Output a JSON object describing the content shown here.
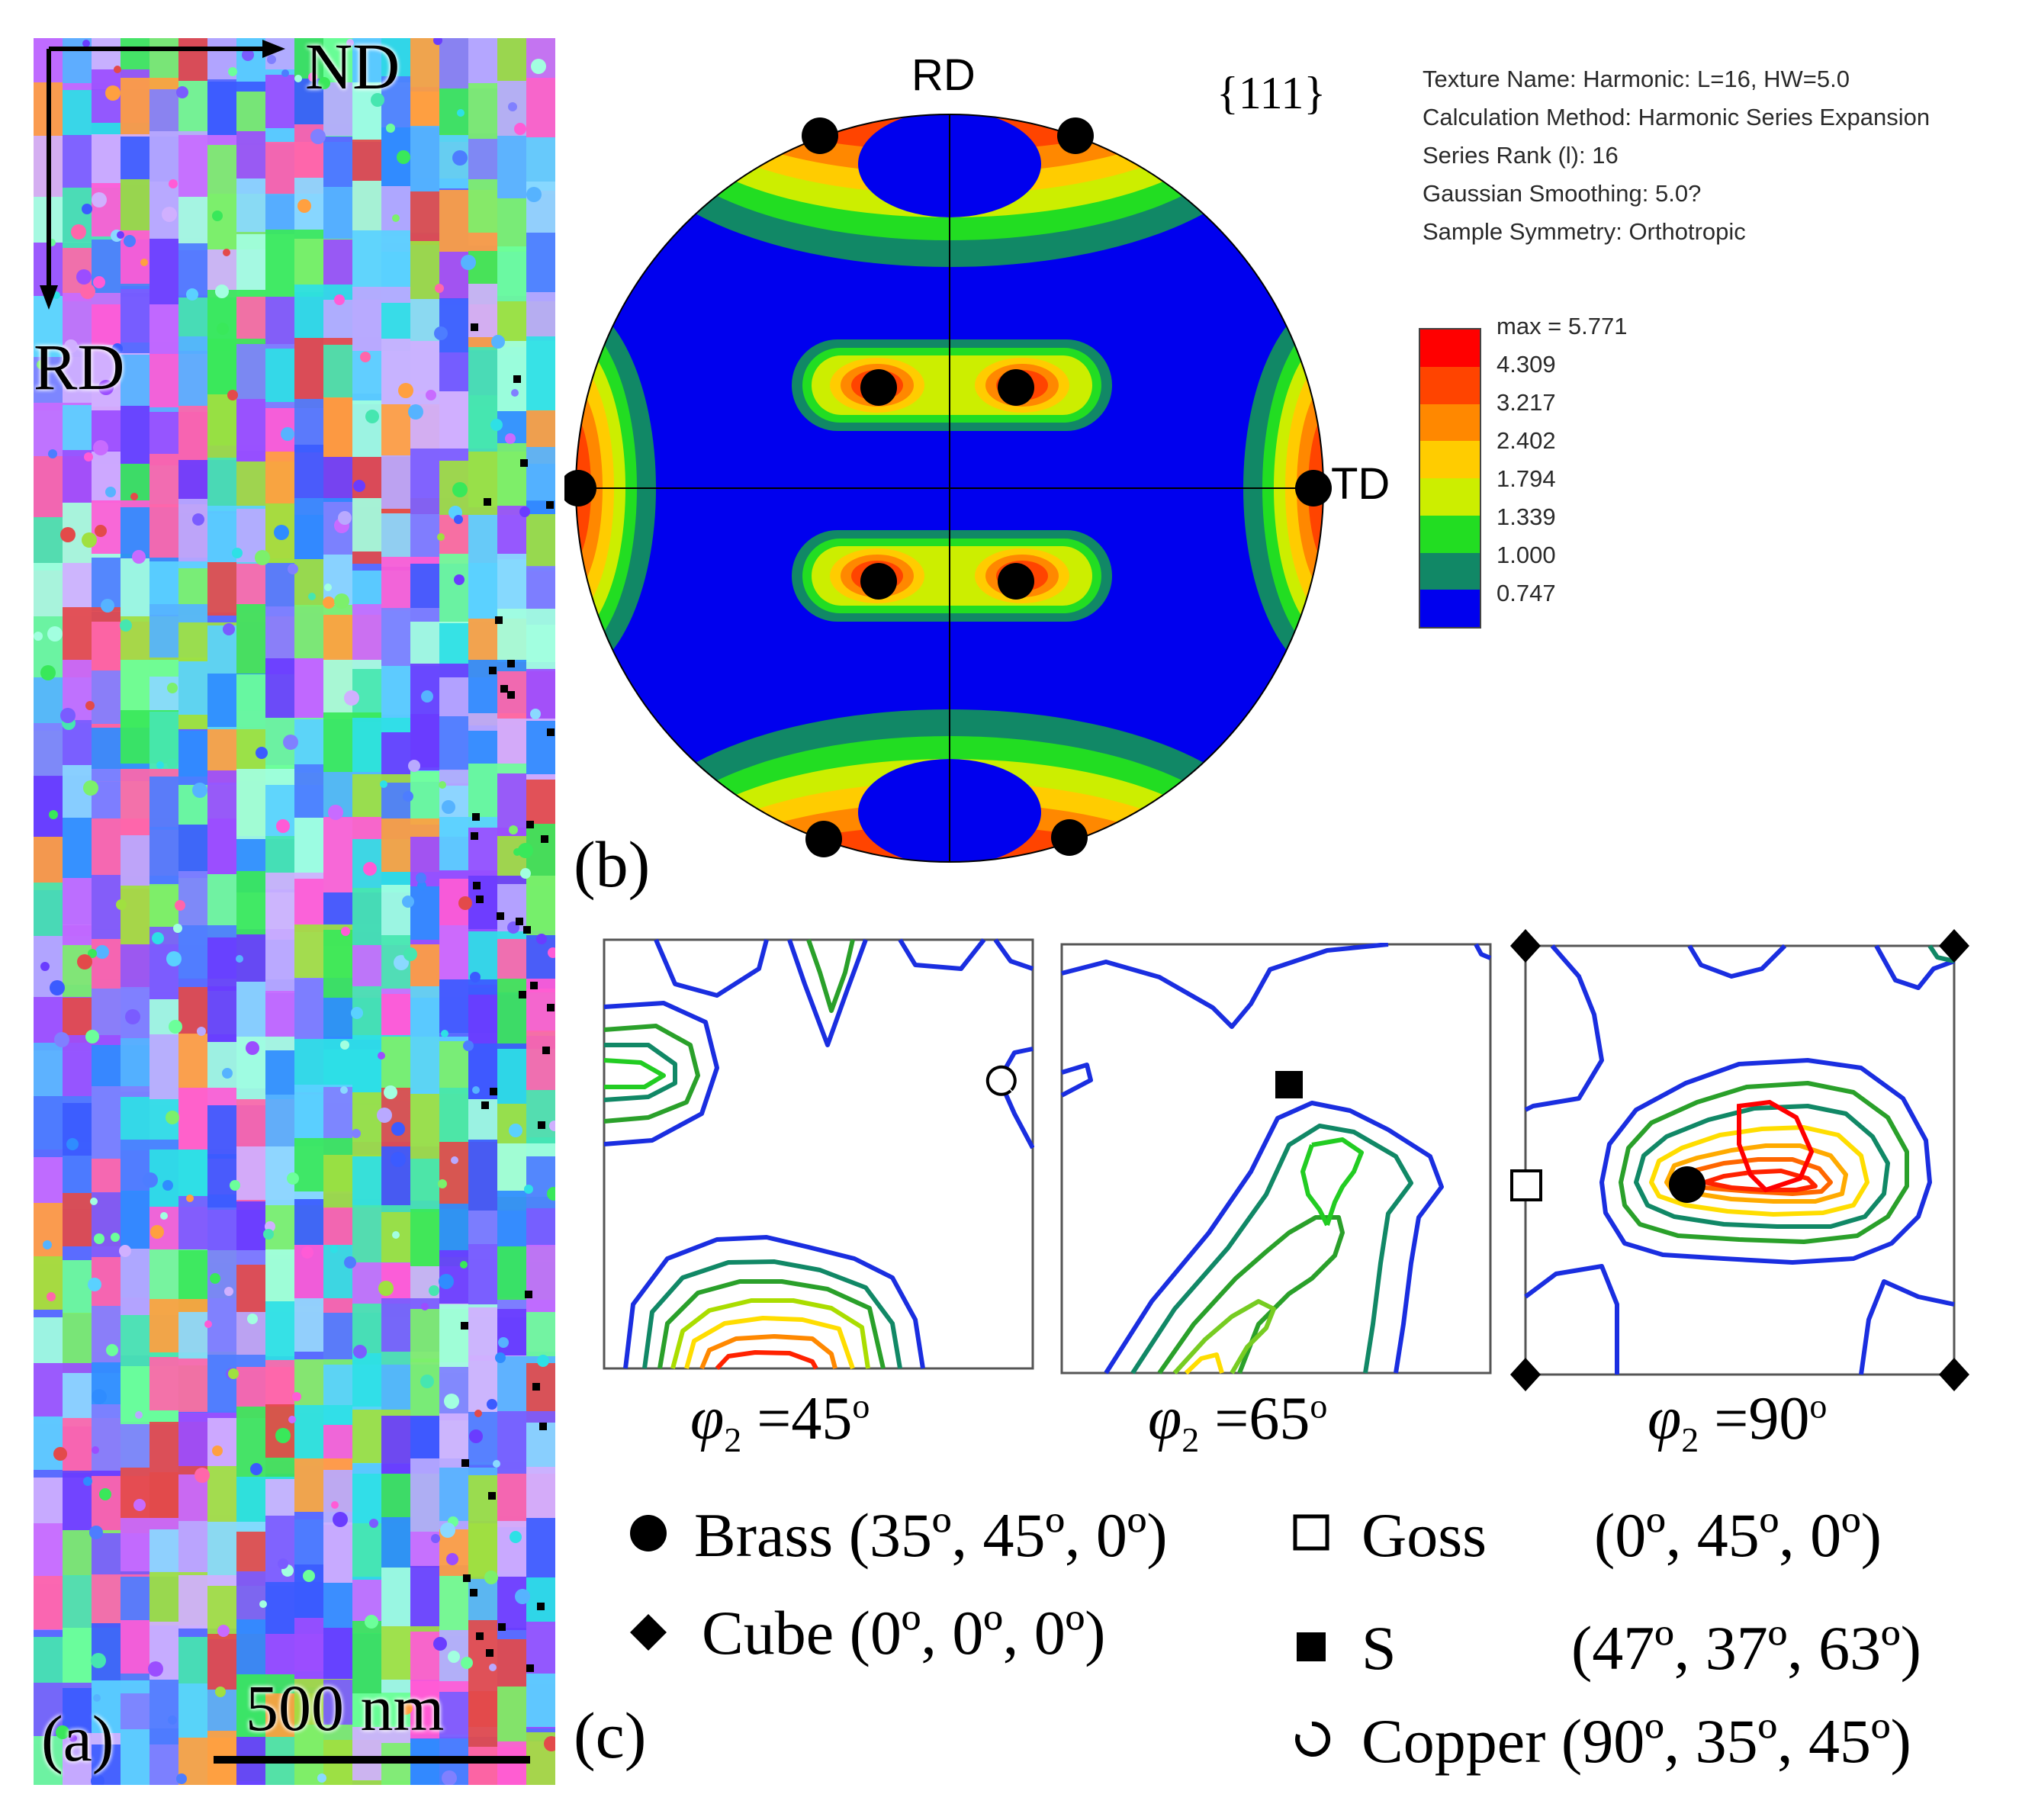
{
  "panel_a": {
    "label": "(a)",
    "axis_nd": "ND",
    "axis_rd": "RD",
    "scale_bar": "500 nm"
  },
  "panel_b": {
    "label": "(b)",
    "plane": "{111}",
    "dir_top": "RD",
    "dir_right": "TD",
    "info": [
      "Texture Name: Harmonic: L=16, HW=5.0",
      "Calculation Method: Harmonic Series Expansion",
      "Series Rank (l): 16",
      "Gaussian Smoothing: 5.0?",
      "Sample Symmetry: Orthotropic"
    ],
    "colorbar": {
      "labels": [
        "max = 5.771",
        "4.309",
        "3.217",
        "2.402",
        "1.794",
        "1.339",
        "1.000",
        "0.747"
      ],
      "colors": [
        "#ff0000",
        "#ff4400",
        "#ff8800",
        "#ffcc00",
        "#ccee00",
        "#22dd22",
        "#118866",
        "#0000ee"
      ]
    }
  },
  "panel_c": {
    "label": "(c)",
    "sections": [
      {
        "symbol": "φ",
        "sub": "2",
        "value": " =45",
        "deg": "o"
      },
      {
        "symbol": "φ",
        "sub": "2",
        "value": " =65",
        "deg": "o"
      },
      {
        "symbol": "φ",
        "sub": "2",
        "value": " =90",
        "deg": "o"
      }
    ],
    "legend": {
      "brass": {
        "icon": "filled-circle",
        "text": "Brass (35º, 45º, 0º)"
      },
      "cube": {
        "icon": "filled-diamond",
        "text": "Cube (0º, 0º, 0º)"
      },
      "goss_name": {
        "icon": "open-square",
        "text": "Goss"
      },
      "goss_angles": "(0º, 45º, 0º)",
      "s_name": {
        "icon": "filled-square",
        "text": "S"
      },
      "s_angles": "(47º, 37º, 63º)",
      "copper": {
        "icon": "open-circle",
        "text": "Copper (90º, 35º, 45º)"
      }
    }
  }
}
